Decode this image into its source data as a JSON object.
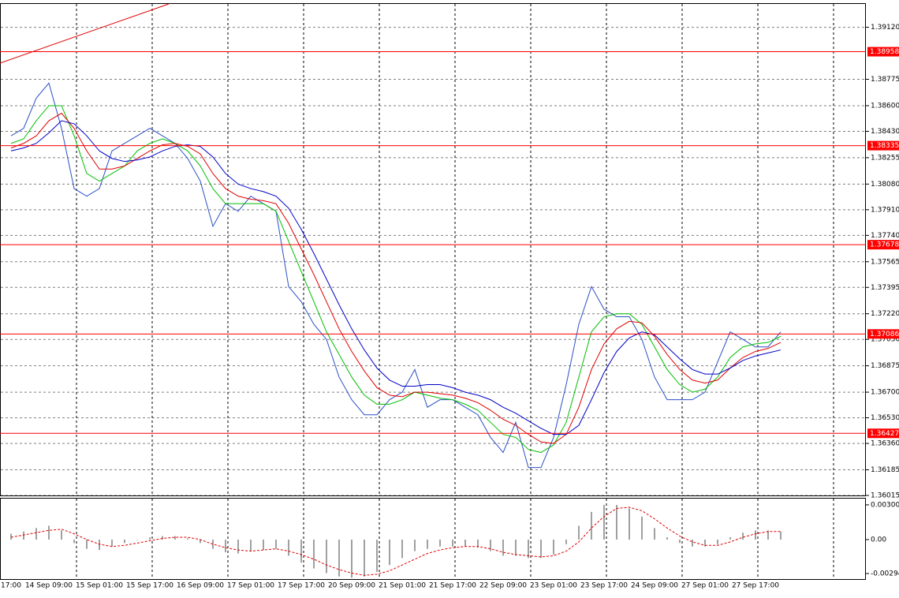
{
  "chart_data": [
    {
      "type": "line",
      "categories": [
        "17:00",
        null,
        null,
        "14 Sep 09:00",
        null,
        null,
        null,
        "15 Sep 01:00",
        null,
        null,
        null,
        "15 Sep 17:00",
        null,
        null,
        null,
        "16 Sep 09:00",
        null,
        null,
        null,
        "17 Sep 01:00",
        null,
        null,
        null,
        "17 Sep 17:00",
        null,
        null,
        null,
        "20 Sep 09:00",
        null,
        null,
        null,
        "21 Sep 01:00",
        null,
        null,
        null,
        "21 Sep 17:00",
        null,
        null,
        null,
        "22 Sep 09:00",
        null,
        null,
        null,
        "23 Sep 01:00",
        null,
        null,
        null,
        "23 Sep 17:00",
        null,
        null,
        null,
        "24 Sep 09:00",
        null,
        null,
        null,
        "27 Sep 01:00",
        null,
        null,
        null,
        "27 Sep 17:00",
        null,
        null
      ],
      "series": [
        {
          "color": "#2a4fc4",
          "values": [
            1.384,
            1.3845,
            1.3865,
            1.3875,
            1.3845,
            1.3805,
            1.38,
            1.3805,
            1.383,
            1.3835,
            1.384,
            1.3845,
            1.384,
            1.3835,
            1.3825,
            1.381,
            1.378,
            1.3795,
            1.379,
            1.38,
            1.3795,
            1.379,
            1.374,
            1.373,
            1.3715,
            1.3705,
            1.368,
            1.3665,
            1.3655,
            1.3655,
            1.3665,
            1.367,
            1.3685,
            1.366,
            1.3665,
            1.3665,
            1.366,
            1.3655,
            1.364,
            1.363,
            1.365,
            1.362,
            1.362,
            1.364,
            1.3675,
            1.3715,
            1.374,
            1.3725,
            1.372,
            1.372,
            1.3705,
            1.368,
            1.3665,
            1.3665,
            1.3665,
            1.367,
            1.369,
            1.371,
            1.3705,
            1.37,
            1.37,
            1.371
          ]
        },
        {
          "color": "#00c000",
          "values": [
            1.3835,
            1.3838,
            1.385,
            1.386,
            1.386,
            1.384,
            1.3815,
            1.381,
            1.3815,
            1.382,
            1.383,
            1.3835,
            1.3838,
            1.3835,
            1.383,
            1.382,
            1.3805,
            1.3795,
            1.3795,
            1.3795,
            1.3795,
            1.379,
            1.377,
            1.375,
            1.373,
            1.371,
            1.3695,
            1.368,
            1.3668,
            1.3662,
            1.3662,
            1.3665,
            1.367,
            1.3668,
            1.3666,
            1.3665,
            1.3662,
            1.3658,
            1.365,
            1.3642,
            1.364,
            1.3632,
            1.363,
            1.3635,
            1.365,
            1.368,
            1.371,
            1.372,
            1.3722,
            1.3722,
            1.3715,
            1.37,
            1.3685,
            1.3675,
            1.367,
            1.3672,
            1.368,
            1.3693,
            1.37,
            1.3702,
            1.3703,
            1.3707
          ]
        },
        {
          "color": "#e00000",
          "values": [
            1.3832,
            1.3835,
            1.384,
            1.385,
            1.3855,
            1.3845,
            1.383,
            1.3818,
            1.3818,
            1.382,
            1.3825,
            1.383,
            1.3834,
            1.3835,
            1.3833,
            1.3828,
            1.3815,
            1.3805,
            1.38,
            1.3798,
            1.3797,
            1.3795,
            1.3782,
            1.3765,
            1.3748,
            1.373,
            1.3712,
            1.3697,
            1.3684,
            1.3673,
            1.3668,
            1.3667,
            1.367,
            1.367,
            1.3669,
            1.3668,
            1.3666,
            1.3663,
            1.3658,
            1.3652,
            1.3648,
            1.3642,
            1.3637,
            1.3636,
            1.3642,
            1.366,
            1.3685,
            1.3702,
            1.3712,
            1.3717,
            1.3716,
            1.3707,
            1.3695,
            1.3685,
            1.3678,
            1.3676,
            1.3678,
            1.3686,
            1.3693,
            1.3697,
            1.3699,
            1.3703
          ]
        },
        {
          "color": "#0000c8",
          "values": [
            1.383,
            1.3832,
            1.3835,
            1.3842,
            1.385,
            1.3848,
            1.384,
            1.383,
            1.3825,
            1.3823,
            1.3824,
            1.3826,
            1.383,
            1.3833,
            1.3834,
            1.3833,
            1.3826,
            1.3815,
            1.3808,
            1.3805,
            1.3803,
            1.38,
            1.3792,
            1.3778,
            1.3762,
            1.3745,
            1.3728,
            1.3712,
            1.3698,
            1.3686,
            1.3678,
            1.3674,
            1.3674,
            1.3675,
            1.3675,
            1.3673,
            1.367,
            1.3668,
            1.3665,
            1.366,
            1.3656,
            1.3651,
            1.3646,
            1.3642,
            1.3642,
            1.3648,
            1.3665,
            1.3683,
            1.3697,
            1.3706,
            1.371,
            1.3708,
            1.37,
            1.3692,
            1.3685,
            1.3682,
            1.3682,
            1.3686,
            1.3691,
            1.3694,
            1.3696,
            1.3698
          ]
        }
      ],
      "levels": [
        1.38958,
        1.38335,
        1.37678,
        1.37086,
        1.36427
      ],
      "level_color": "#ff0000",
      "ylim": [
        1.36015,
        1.3928
      ],
      "yticks": [
        {
          "value": 1.3912,
          "label": "1.39120"
        },
        {
          "value": 1.38775,
          "label": "1.38775"
        },
        {
          "value": 1.386,
          "label": "1.38600"
        },
        {
          "value": 1.3843,
          "label": "1.38430"
        },
        1.38255,
        {
          "value": 1.3808,
          "label": "1.38080"
        },
        {
          "value": 1.3791,
          "label": "1.37910"
        },
        {
          "value": 1.3774,
          "label": "1.37740"
        },
        1.37565,
        1.37395,
        {
          "value": 1.3722,
          "label": "1.37220"
        },
        {
          "value": 1.3705,
          "label": "1.37050"
        },
        1.36875,
        {
          "value": 1.367,
          "label": "1.36700"
        },
        {
          "value": 1.3653,
          "label": "1.36530"
        },
        {
          "value": 1.3636,
          "label": "1.36360"
        },
        1.36185,
        1.36015
      ],
      "grid": true
    },
    {
      "type": "bar",
      "series": [
        {
          "color": "#a0a0a0",
          "values": [
            0.0005,
            0.0007,
            0.001,
            0.0012,
            0.0008,
            -0.0003,
            -0.0008,
            -0.0009,
            -0.0006,
            -0.0003,
            0,
            0.0002,
            0.0003,
            0.0003,
            0.0001,
            -0.0003,
            -0.0008,
            -0.0011,
            -0.0012,
            -0.001,
            -0.0009,
            -0.0008,
            -0.0014,
            -0.002,
            -0.0025,
            -0.0029,
            -0.0032,
            -0.0033,
            -0.0032,
            -0.0028,
            -0.0022,
            -0.0016,
            -0.001,
            -0.0008,
            -0.0006,
            -0.0006,
            -0.0006,
            -0.0007,
            -0.001,
            -0.0014,
            -0.0014,
            -0.0016,
            -0.0016,
            -0.0013,
            -0.0004,
            0.0012,
            0.0024,
            0.003,
            0.003,
            0.0027,
            0.002,
            0.001,
            0.0002,
            -0.0003,
            -0.0006,
            -0.0006,
            -0.0004,
            0.0002,
            0.0006,
            0.0008,
            0.0008,
            0.0007
          ]
        },
        {
          "color": "#e00000",
          "dashed": true,
          "values": [
            0.0002,
            0.0004,
            0.0006,
            0.0008,
            0.0009,
            0.0005,
            0,
            -0.0004,
            -0.0006,
            -0.0005,
            -0.0003,
            -0.0001,
            0.0001,
            0.0002,
            0.0002,
            0,
            -0.0004,
            -0.0007,
            -0.0009,
            -0.001,
            -0.0009,
            -0.0008,
            -0.001,
            -0.0013,
            -0.0017,
            -0.0022,
            -0.0026,
            -0.0029,
            -0.0031,
            -0.003,
            -0.0027,
            -0.0022,
            -0.0017,
            -0.0012,
            -0.0009,
            -0.0007,
            -0.0006,
            -0.0006,
            -0.0008,
            -0.0011,
            -0.0013,
            -0.0014,
            -0.0015,
            -0.0014,
            -0.001,
            -0.0002,
            0.001,
            0.002,
            0.0027,
            0.0028,
            0.0025,
            0.0018,
            0.001,
            0.0003,
            -0.0002,
            -0.0005,
            -0.0005,
            -0.0002,
            0.0002,
            0.0005,
            0.0007,
            0.0007
          ]
        }
      ],
      "ylim": [
        -0.00342,
        0.00362
      ],
      "yticks": [
        0.003008,
        {
          "value": 0,
          "label": "0.00"
        },
        -0.00294
      ]
    }
  ]
}
